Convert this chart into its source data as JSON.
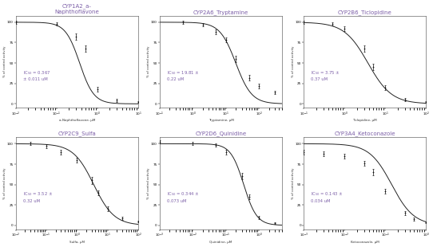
{
  "panels": [
    {
      "title": "CYP1A2_a-\nNaphthoflavone",
      "xlabel": "a-Naphthoflavone, μM",
      "ic50": 0.367,
      "ic50_err": 0.011,
      "ic50_text": "IC$_{50}$ = 0.367\n± 0.011 uM",
      "xmin": 0.01,
      "xmax": 10,
      "hill": 2.5,
      "data_x": [
        0.01,
        0.1,
        0.3,
        0.5,
        1.0,
        3.0,
        10.0
      ],
      "data_y": [
        100,
        98,
        82,
        68,
        18,
        4,
        2
      ],
      "data_yerr": [
        2,
        2,
        4,
        4,
        3,
        2,
        1
      ]
    },
    {
      "title": "CYP2A6_Tryptamine",
      "xlabel": "Tryptamine, μM",
      "ic50": 19.81,
      "ic50_err": 0.22,
      "ic50_text": "IC$_{50}$ = 19.81 ±\n0.22 uM",
      "xmin": 0.1,
      "xmax": 500,
      "hill": 1.8,
      "data_x": [
        0.5,
        2.0,
        5.0,
        10.0,
        20.0,
        50.0,
        100.0,
        300.0
      ],
      "data_y": [
        100,
        97,
        88,
        78,
        55,
        32,
        22,
        14
      ],
      "data_yerr": [
        2,
        2,
        3,
        3,
        4,
        3,
        3,
        2
      ]
    },
    {
      "title": "CYP2B6_Ticlopidine",
      "xlabel": "Ticlopidine, μM",
      "ic50": 3.75,
      "ic50_err": 0.37,
      "ic50_text": "IC$_{50}$ = 3.75 ±\n0.37 uM",
      "xmin": 0.1,
      "xmax": 100,
      "hill": 1.5,
      "data_x": [
        0.1,
        0.5,
        1.0,
        3.0,
        5.0,
        10.0,
        30.0,
        100.0
      ],
      "data_y": [
        100,
        98,
        92,
        68,
        45,
        20,
        5,
        2
      ],
      "data_yerr": [
        2,
        2,
        3,
        4,
        4,
        3,
        2,
        1
      ]
    },
    {
      "title": "CYP2C9_Sulfa",
      "xlabel": "Sulfa, μM",
      "ic50": 3.52,
      "ic50_err": 0.32,
      "ic50_text": "IC$_{50}$ = 3.52 ±\n0.32 uM",
      "xmin": 0.01,
      "xmax": 100,
      "hill": 1.3,
      "data_x": [
        0.03,
        0.1,
        0.3,
        1.0,
        3.0,
        5.0,
        10.0,
        30.0,
        100.0
      ],
      "data_y": [
        100,
        97,
        90,
        80,
        55,
        40,
        20,
        9,
        5
      ],
      "data_yerr": [
        2,
        2,
        3,
        3,
        4,
        3,
        3,
        2,
        1
      ]
    },
    {
      "title": "CYP2D6_Quinidine",
      "xlabel": "Quinidine, μM",
      "ic50": 0.344,
      "ic50_err": 0.073,
      "ic50_text": "IC$_{50}$ = 0.344 ±\n0.073 uM",
      "xmin": 0.001,
      "xmax": 5,
      "hill": 2.2,
      "data_x": [
        0.001,
        0.01,
        0.05,
        0.1,
        0.3,
        0.5,
        1.0,
        3.0
      ],
      "data_y": [
        102,
        100,
        98,
        90,
        60,
        35,
        10,
        3
      ],
      "data_yerr": [
        2,
        2,
        2,
        3,
        4,
        3,
        2,
        1
      ]
    },
    {
      "title": "CYP3A4_Ketoconazole",
      "xlabel": "Ketoconazole, μM",
      "ic50": 0.143,
      "ic50_err": 0.034,
      "ic50_text": "IC$_{50}$ = 0.143 ±\n0.034 uM",
      "xmin": 0.001,
      "xmax": 1,
      "hill": 1.6,
      "data_x": [
        0.001,
        0.003,
        0.01,
        0.03,
        0.05,
        0.1,
        0.3,
        0.5,
        1.0
      ],
      "data_y": [
        90,
        88,
        85,
        76,
        65,
        42,
        15,
        8,
        4
      ],
      "data_yerr": [
        3,
        3,
        3,
        3,
        4,
        3,
        2,
        2,
        1
      ]
    }
  ],
  "title_color": "#7B5EA7",
  "text_color": "#7B5EA7",
  "curve_color": "#222222",
  "data_color": "#111111",
  "ylabel": "% of control activity",
  "background": "#FFFFFF",
  "fig_width": 5.42,
  "fig_height": 3.1,
  "dpi": 100
}
